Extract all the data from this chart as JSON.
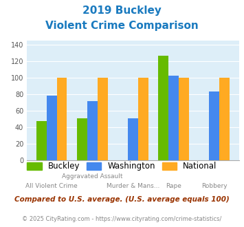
{
  "title_line1": "2019 Buckley",
  "title_line2": "Violent Crime Comparison",
  "title_color": "#1a7abf",
  "buckley": [
    47,
    51,
    0,
    127,
    0
  ],
  "washington": [
    78,
    72,
    51,
    103,
    83
  ],
  "national": [
    100,
    100,
    100,
    100,
    100
  ],
  "bar_colors": {
    "buckley": "#66bb00",
    "washington": "#4488ee",
    "national": "#ffaa22"
  },
  "ylim": [
    0,
    145
  ],
  "yticks": [
    0,
    20,
    40,
    60,
    80,
    100,
    120,
    140
  ],
  "x_labels_top": [
    "",
    "Aggravated Assault",
    "",
    "",
    ""
  ],
  "x_labels_bottom": [
    "All Violent Crime",
    "",
    "Murder & Mans...",
    "Rape",
    "Robbery"
  ],
  "legend_labels": [
    "Buckley",
    "Washington",
    "National"
  ],
  "footnote1": "Compared to U.S. average. (U.S. average equals 100)",
  "footnote2": "© 2025 CityRating.com - https://www.cityrating.com/crime-statistics/",
  "footnote1_color": "#993300",
  "footnote2_color": "#888888",
  "plot_bg_color": "#ddeef8"
}
